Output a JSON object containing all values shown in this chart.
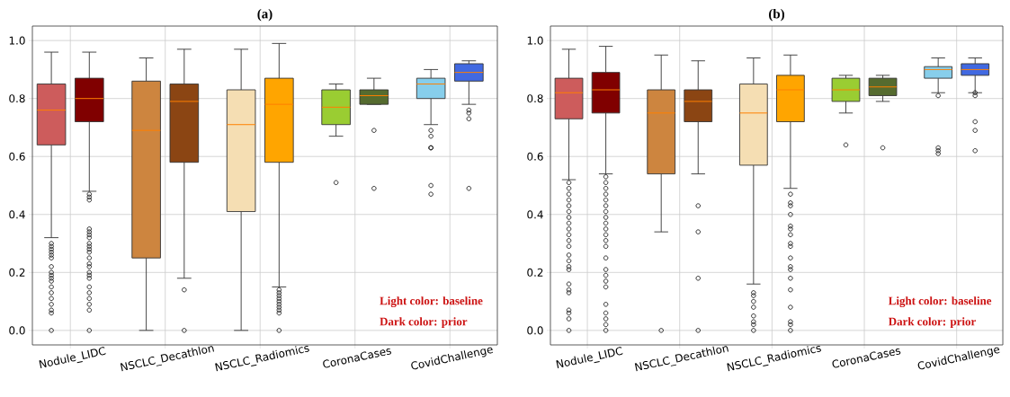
{
  "chart_data": [
    {
      "type": "box",
      "title": "(a)",
      "categories": [
        "Nodule_LIDC",
        "NSCLC_Decathlon",
        "NSCLC_Radiomics",
        "CoronaCases",
        "CovidChallenge"
      ],
      "ylim": [
        -0.05,
        1.05
      ],
      "yticks": [
        {
          "value": 0,
          "label": "0.0"
        },
        {
          "value": 0.2,
          "label": "0.2"
        },
        {
          "value": 0.4,
          "label": "0.4"
        },
        {
          "value": 0.6,
          "label": "0.6"
        },
        {
          "value": 0.8,
          "label": "0.8"
        },
        {
          "value": 1,
          "label": "1.0"
        }
      ],
      "grid": true,
      "marker": "circle",
      "annotations": [
        "Light color: baseline",
        "Dark color: prior"
      ],
      "series": [
        {
          "colors": [
            "#cd5c5c",
            "#cd853f",
            "#f5deb3",
            "#9acd32",
            "#87ceeb"
          ],
          "boxes": [
            {
              "low": 0.32,
              "q1": 0.64,
              "median": 0.76,
              "q3": 0.85,
              "high": 0.96,
              "outliers": [
                0.3,
                0.29,
                0.28,
                0.27,
                0.26,
                0.25,
                0.22,
                0.2,
                0.19,
                0.18,
                0.17,
                0.15,
                0.13,
                0.11,
                0.09,
                0.07,
                0.06,
                0
              ]
            },
            {
              "low": 0,
              "q1": 0.25,
              "median": 0.69,
              "q3": 0.86,
              "high": 0.94
            },
            {
              "low": 0,
              "q1": 0.41,
              "median": 0.71,
              "q3": 0.83,
              "high": 0.97
            },
            {
              "low": 0.67,
              "q1": 0.71,
              "median": 0.77,
              "q3": 0.83,
              "high": 0.85,
              "outliers": [
                0.51
              ]
            },
            {
              "low": 0.71,
              "q1": 0.8,
              "median": 0.85,
              "q3": 0.87,
              "high": 0.9,
              "outliers": [
                0.69,
                0.67,
                0.63,
                0.63,
                0.5,
                0.47
              ]
            }
          ]
        },
        {
          "colors": [
            "#800000",
            "#8b4513",
            "#ffa500",
            "#556b2f",
            "#4169e1"
          ],
          "boxes": [
            {
              "low": 0.48,
              "q1": 0.72,
              "median": 0.8,
              "q3": 0.87,
              "high": 0.96,
              "outliers": [
                0.47,
                0.46,
                0.45,
                0.35,
                0.34,
                0.33,
                0.32,
                0.3,
                0.29,
                0.28,
                0.27,
                0.25,
                0.23,
                0.22,
                0.2,
                0.19,
                0.18,
                0.15,
                0.13,
                0.11,
                0.09,
                0.07,
                0
              ]
            },
            {
              "low": 0.18,
              "q1": 0.58,
              "median": 0.79,
              "q3": 0.85,
              "high": 0.97,
              "outliers": [
                0.14,
                0
              ]
            },
            {
              "low": 0.15,
              "q1": 0.58,
              "median": 0.78,
              "q3": 0.87,
              "high": 0.99,
              "outliers": [
                0.14,
                0.13,
                0.12,
                0.11,
                0.1,
                0.09,
                0.08,
                0.07,
                0.06,
                0
              ]
            },
            {
              "low": 0.78,
              "q1": 0.78,
              "median": 0.81,
              "q3": 0.83,
              "high": 0.87,
              "outliers": [
                0.69,
                0.49
              ]
            },
            {
              "low": 0.78,
              "q1": 0.86,
              "median": 0.89,
              "q3": 0.92,
              "high": 0.93,
              "outliers": [
                0.76,
                0.75,
                0.73,
                0.49
              ]
            }
          ]
        }
      ]
    },
    {
      "type": "box",
      "title": "(b)",
      "categories": [
        "Nodule_LIDC",
        "NSCLC_Decathlon",
        "NSCLC_Radiomics",
        "CoronaCases",
        "CovidChallenge"
      ],
      "ylim": [
        -0.05,
        1.05
      ],
      "yticks": [
        {
          "value": 0,
          "label": "0.0"
        },
        {
          "value": 0.2,
          "label": "0.2"
        },
        {
          "value": 0.4,
          "label": "0.4"
        },
        {
          "value": 0.6,
          "label": "0.6"
        },
        {
          "value": 0.8,
          "label": "0.8"
        },
        {
          "value": 1,
          "label": "1.0"
        }
      ],
      "grid": true,
      "marker": "circle",
      "annotations": [
        "Light color: baseline",
        "Dark color: prior"
      ],
      "series": [
        {
          "colors": [
            "#cd5c5c",
            "#cd853f",
            "#f5deb3",
            "#9acd32",
            "#87ceeb"
          ],
          "boxes": [
            {
              "low": 0.52,
              "q1": 0.73,
              "median": 0.82,
              "q3": 0.87,
              "high": 0.97,
              "outliers": [
                0.51,
                0.49,
                0.47,
                0.45,
                0.43,
                0.41,
                0.39,
                0.37,
                0.35,
                0.33,
                0.31,
                0.29,
                0.26,
                0.24,
                0.22,
                0.21,
                0.16,
                0.14,
                0.13,
                0.07,
                0.06,
                0.04,
                0
              ]
            },
            {
              "low": 0.34,
              "q1": 0.54,
              "median": 0.75,
              "q3": 0.83,
              "high": 0.95,
              "outliers": [
                0
              ]
            },
            {
              "low": 0.16,
              "q1": 0.57,
              "median": 0.75,
              "q3": 0.85,
              "high": 0.94,
              "outliers": [
                0.13,
                0.12,
                0.1,
                0.08,
                0.05,
                0.03,
                0.02,
                0
              ]
            },
            {
              "low": 0.75,
              "q1": 0.79,
              "median": 0.83,
              "q3": 0.87,
              "high": 0.88,
              "outliers": [
                0.64
              ]
            },
            {
              "low": 0.82,
              "q1": 0.87,
              "median": 0.9,
              "q3": 0.91,
              "high": 0.94,
              "outliers": [
                0.81,
                0.63,
                0.62,
                0.61
              ]
            }
          ]
        },
        {
          "colors": [
            "#800000",
            "#8b4513",
            "#ffa500",
            "#556b2f",
            "#4169e1"
          ],
          "boxes": [
            {
              "low": 0.54,
              "q1": 0.75,
              "median": 0.83,
              "q3": 0.89,
              "high": 0.98,
              "outliers": [
                0.53,
                0.51,
                0.49,
                0.47,
                0.45,
                0.43,
                0.41,
                0.39,
                0.37,
                0.35,
                0.33,
                0.31,
                0.29,
                0.25,
                0.21,
                0.19,
                0.17,
                0.15,
                0.09,
                0.06,
                0.04,
                0.02,
                0
              ]
            },
            {
              "low": 0.54,
              "q1": 0.72,
              "median": 0.79,
              "q3": 0.83,
              "high": 0.93,
              "outliers": [
                0.43,
                0.34,
                0.18,
                0
              ]
            },
            {
              "low": 0.49,
              "q1": 0.72,
              "median": 0.83,
              "q3": 0.88,
              "high": 0.95,
              "outliers": [
                0.47,
                0.44,
                0.43,
                0.4,
                0.36,
                0.35,
                0.33,
                0.3,
                0.29,
                0.25,
                0.22,
                0.21,
                0.18,
                0.14,
                0.08,
                0.03,
                0.02,
                0
              ]
            },
            {
              "low": 0.79,
              "q1": 0.81,
              "median": 0.84,
              "q3": 0.87,
              "high": 0.88,
              "outliers": [
                0.63
              ]
            },
            {
              "low": 0.82,
              "q1": 0.88,
              "median": 0.9,
              "q3": 0.92,
              "high": 0.94,
              "outliers": [
                0.82,
                0.81,
                0.72,
                0.69,
                0.62
              ]
            }
          ]
        }
      ]
    }
  ]
}
